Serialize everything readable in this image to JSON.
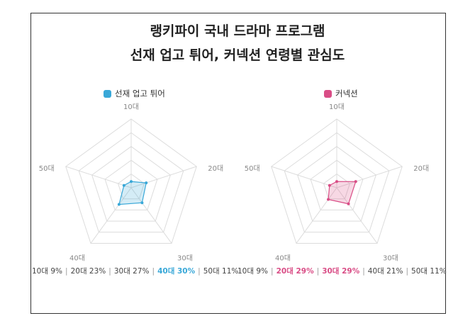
{
  "title_line1": "랭키파이 국내 드라마 프로그램",
  "title_line2": "선재 업고 튀어, 커넥션 연령별 관심도",
  "chart_data": [
    {
      "type": "radar",
      "series": [
        {
          "name": "선재 업고 튀어",
          "values": [
            9,
            23,
            27,
            30,
            11
          ]
        }
      ],
      "categories": [
        "10대",
        "20대",
        "30대",
        "40대",
        "50대"
      ],
      "color": "#39a8d8",
      "fill": "rgba(57,168,216,0.22)",
      "rmax": 100,
      "summary": [
        {
          "label": "10대 9%",
          "highlight": false
        },
        {
          "label": "20대 23%",
          "highlight": false
        },
        {
          "label": "30대 27%",
          "highlight": false
        },
        {
          "label": "40대 30%",
          "highlight": true
        },
        {
          "label": "50대 11%",
          "highlight": false
        }
      ]
    },
    {
      "type": "radar",
      "series": [
        {
          "name": "커넥션",
          "values": [
            9,
            29,
            29,
            21,
            11
          ]
        }
      ],
      "categories": [
        "10대",
        "20대",
        "30대",
        "40대",
        "50대"
      ],
      "color": "#d94d86",
      "fill": "rgba(217,77,134,0.22)",
      "rmax": 100,
      "summary": [
        {
          "label": "10대 9%",
          "highlight": false
        },
        {
          "label": "20대 29%",
          "highlight": true
        },
        {
          "label": "30대 29%",
          "highlight": true
        },
        {
          "label": "40대 21%",
          "highlight": false
        },
        {
          "label": "50대 11%",
          "highlight": false
        }
      ]
    }
  ]
}
